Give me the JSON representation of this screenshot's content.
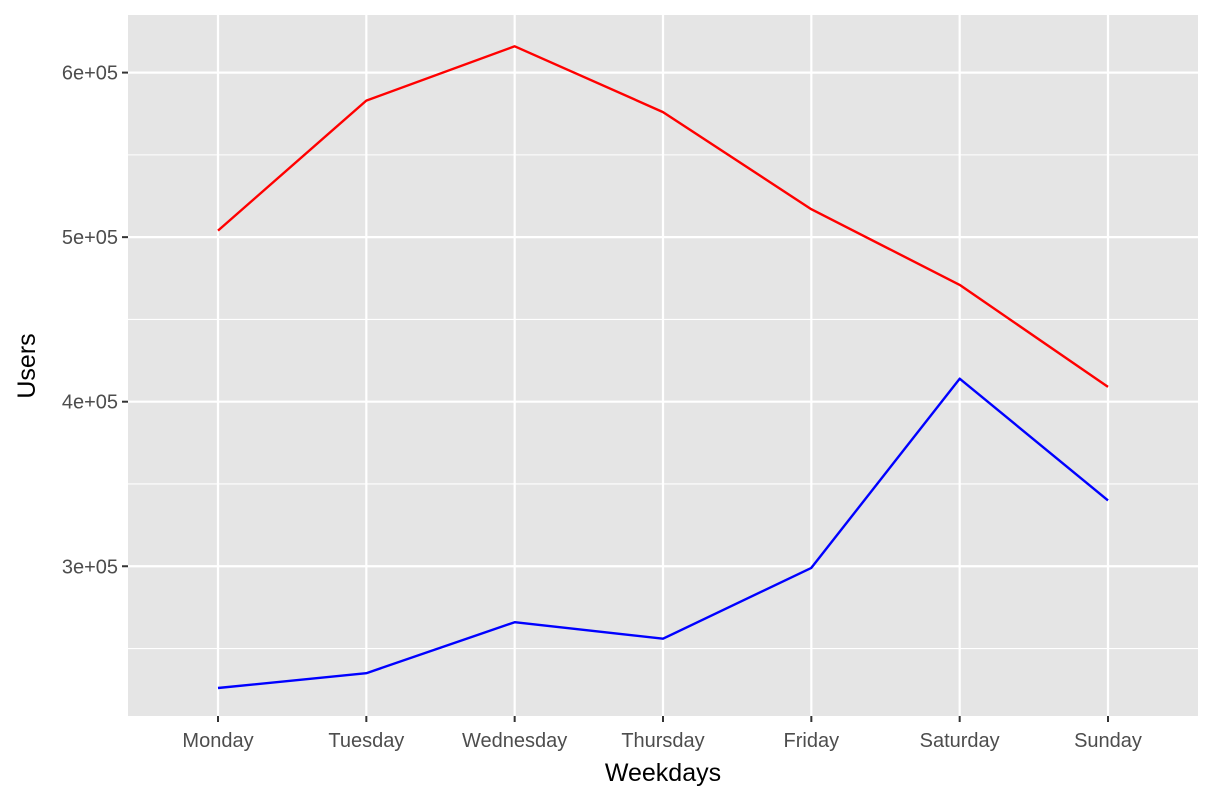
{
  "chart_data": {
    "type": "line",
    "title": "",
    "xlabel": "Weekdays",
    "ylabel": "Users",
    "categories": [
      "Monday",
      "Tuesday",
      "Wednesday",
      "Thursday",
      "Friday",
      "Saturday",
      "Sunday"
    ],
    "ylim": [
      209000,
      635000
    ],
    "yticks": [
      300000,
      400000,
      500000,
      600000
    ],
    "ytick_labels": [
      "3e+05",
      "4e+05",
      "5e+05",
      "6e+05"
    ],
    "grid": true,
    "legend": "none",
    "series": [
      {
        "color": "#ff0000",
        "values": [
          504000,
          583000,
          616000,
          576000,
          517000,
          471000,
          409000
        ]
      },
      {
        "color": "#0000ff",
        "values": [
          226000,
          235000,
          266000,
          256000,
          299000,
          414000,
          340000
        ]
      }
    ],
    "colors": {
      "panel": "#e5e5e5",
      "grid": "#ffffff",
      "tick": "#333333",
      "tick_text": "#4d4d4d"
    }
  }
}
